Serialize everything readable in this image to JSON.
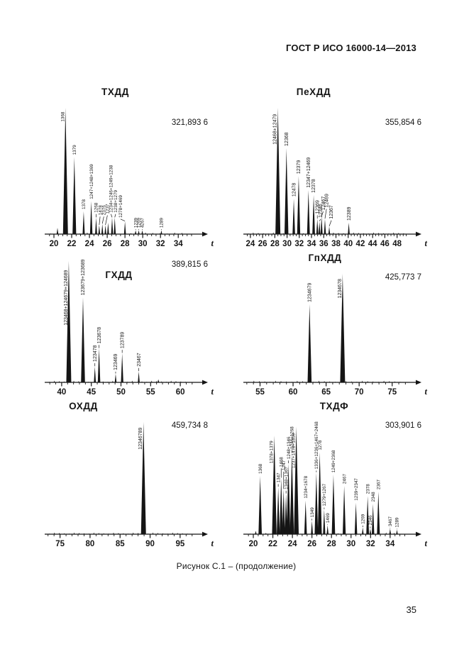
{
  "page": {
    "header": "ГОСТ Р ИСО 16000-14—2013",
    "caption": "Рисунок С.1 – (продолжение)",
    "page_number": "35"
  },
  "colors": {
    "ink": "#151515",
    "paper": "#ffffff"
  },
  "chart_data": [
    {
      "type": "line",
      "subtype": "chromatogram-peaks",
      "title": "ТХДД",
      "value_label": "321,893 6",
      "xlabel": "t",
      "x_ticks": [
        20,
        22,
        24,
        26,
        28,
        30,
        32,
        34
      ],
      "x_range": [
        19.2,
        35.9
      ],
      "minor_step": 0.5,
      "ylim": [
        0,
        1
      ],
      "grid": false,
      "peaks": [
        {
          "t": 20.4,
          "h": 0.05,
          "label": ""
        },
        {
          "t": 21.3,
          "h": 1.0,
          "label": "1368"
        },
        {
          "t": 22.3,
          "h": 0.61,
          "label": "1379"
        },
        {
          "t": 23.35,
          "h": 0.18,
          "label": "1378"
        },
        {
          "t": 24.2,
          "h": 0.26,
          "label": "1247+1248+1369"
        },
        {
          "t": 24.75,
          "h": 0.13,
          "label": "1268",
          "ly": 0.17
        },
        {
          "t": 25.1,
          "h": 0.07,
          "label": "1478",
          "lx": 25.2,
          "ly": 0.15
        },
        {
          "t": 25.45,
          "h": 0.08,
          "label": "2376",
          "lx": 25.62,
          "ly": 0.15
        },
        {
          "t": 25.8,
          "h": 0.07,
          "label": "1237",
          "lx": 26.02,
          "ly": 0.16
        },
        {
          "t": 26.1,
          "h": 0.09,
          "label": ""
        },
        {
          "t": 26.55,
          "h": 0.13,
          "label": "1234+1246+1249+1238",
          "lx": 26.42,
          "ly": 0.17
        },
        {
          "t": 26.85,
          "h": 0.13,
          "label": "1238+1279",
          "lx": 26.95,
          "ly": 0.17
        },
        {
          "t": 28.0,
          "h": 0.1,
          "label": "1278+1469",
          "lx": 27.5,
          "ly": 0.13
        },
        {
          "t": 29.2,
          "h": 0.03,
          "label": "1239",
          "ly": 0.05
        },
        {
          "t": 29.55,
          "h": 0.03,
          "label": "1269",
          "ly": 0.05
        },
        {
          "t": 29.95,
          "h": 0.03,
          "label": "4267",
          "ly": 0.05
        },
        {
          "t": 32.1,
          "h": 0.03,
          "label": "1289",
          "ly": 0.05
        }
      ]
    },
    {
      "type": "line",
      "subtype": "chromatogram-peaks",
      "title": "ПеХДД",
      "value_label": "355,854 6",
      "xlabel": "t",
      "x_ticks": [
        24,
        26,
        28,
        30,
        32,
        34,
        36,
        38,
        40,
        42,
        44,
        46,
        48
      ],
      "x_range": [
        23.2,
        49.9
      ],
      "minor_step": 0.5,
      "ylim": [
        0,
        1
      ],
      "grid": false,
      "peaks": [
        {
          "t": 28.5,
          "h": 1.0,
          "label": "12468+12479"
        },
        {
          "t": 29.9,
          "h": 0.68,
          "label": "12368"
        },
        {
          "t": 31.1,
          "h": 0.28,
          "label": "12478"
        },
        {
          "t": 31.9,
          "h": 0.46,
          "label": "12379"
        },
        {
          "t": 33.5,
          "h": 0.35,
          "label": "12347+12469"
        },
        {
          "t": 34.35,
          "h": 0.31,
          "label": "12378"
        },
        {
          "t": 34.95,
          "h": 0.12,
          "label": "12369",
          "ly": 0.16
        },
        {
          "t": 35.3,
          "h": 0.1,
          "label": "12346",
          "lx": 35.5,
          "ly": 0.13
        },
        {
          "t": 35.65,
          "h": 0.14,
          "label": "12467",
          "lx": 35.92,
          "ly": 0.19
        },
        {
          "t": 36.2,
          "h": 0.12,
          "label": "12469",
          "lx": 36.45,
          "ly": 0.21
        },
        {
          "t": 36.9,
          "h": 0.06,
          "label": "12367",
          "lx": 37.25,
          "ly": 0.12
        },
        {
          "t": 40.1,
          "h": 0.09,
          "label": "12389"
        }
      ]
    },
    {
      "type": "line",
      "subtype": "chromatogram-peaks",
      "title": "ГХДД",
      "value_label": "389,815 6",
      "xlabel": "t",
      "x_ticks": [
        40,
        45,
        50,
        55,
        60
      ],
      "x_range": [
        37.5,
        62.5
      ],
      "minor_step": 1,
      "ylim": [
        0,
        1
      ],
      "grid": false,
      "title_inside": true,
      "peaks": [
        {
          "t": 41.2,
          "h": 1.0,
          "label": "123468+124679+124689"
        },
        {
          "t": 43.6,
          "h": 0.7,
          "label": "123679+123689"
        },
        {
          "t": 45.6,
          "h": 0.13,
          "label": "123478",
          "ly": 0.17
        },
        {
          "t": 46.3,
          "h": 0.28,
          "label": "123678",
          "ly": 0.32
        },
        {
          "t": 49.1,
          "h": 0.07,
          "label": "123469",
          "ly": 0.1
        },
        {
          "t": 50.2,
          "h": 0.24,
          "label": "123789",
          "ly": 0.28
        },
        {
          "t": 53.0,
          "h": 0.09,
          "label": "23467",
          "ly": 0.13
        },
        {
          "t": 56.3,
          "h": 0.025,
          "label": ""
        }
      ]
    },
    {
      "type": "line",
      "subtype": "chromatogram-peaks",
      "title": "ГпХДД",
      "value_label": "425,773 7",
      "xlabel": "t",
      "x_ticks": [
        55,
        60,
        65,
        70,
        75
      ],
      "x_range": [
        52.8,
        77.5
      ],
      "minor_step": 1,
      "ylim": [
        0,
        1
      ],
      "grid": false,
      "peaks": [
        {
          "t": 62.5,
          "h": 0.72,
          "label": "1234679"
        },
        {
          "t": 67.5,
          "h": 1.0,
          "label": "1234678"
        }
      ]
    },
    {
      "type": "line",
      "subtype": "chromatogram-peaks",
      "title": "ОХДД",
      "value_label": "459,734 8",
      "xlabel": "t",
      "x_ticks": [
        75,
        80,
        85,
        90,
        95
      ],
      "x_range": [
        72.8,
        97.5
      ],
      "minor_step": 1,
      "ylim": [
        0,
        1
      ],
      "grid": false,
      "peaks": [
        {
          "t": 88.9,
          "h": 1.0,
          "label": "12346789"
        }
      ]
    },
    {
      "type": "line",
      "subtype": "chromatogram-peaks",
      "title": "ТХДФ",
      "value_label": "303,901 6",
      "xlabel": "t",
      "x_ticks": [
        20,
        22,
        24,
        26,
        28,
        30,
        32,
        34
      ],
      "x_range": [
        19.2,
        35.9
      ],
      "minor_step": 0.5,
      "ylim": [
        0,
        1
      ],
      "grid": false,
      "peaks": [
        {
          "t": 20.25,
          "h": 0.03,
          "label": ""
        },
        {
          "t": 20.7,
          "h": 0.52,
          "label": "1368"
        },
        {
          "t": 22.15,
          "h": 0.88,
          "label": "1378+1379"
        },
        {
          "t": 22.55,
          "h": 0.42,
          "label": "1347",
          "ly": 0.46
        },
        {
          "t": 22.85,
          "h": 0.5,
          "label": "1468",
          "ly": 0.6
        },
        {
          "t": 23.1,
          "h": 0.4,
          "label": "1247",
          "ly": 0.57
        },
        {
          "t": 23.35,
          "h": 0.36,
          "label": "1348+1367",
          "ly": 0.4
        },
        {
          "t": 23.6,
          "h": 0.63,
          "label": "1248+1346",
          "ly": 0.67
        },
        {
          "t": 23.95,
          "h": 0.72,
          "label": "1246+1268",
          "ly": 0.76
        },
        {
          "t": 24.4,
          "h": 0.96,
          "label": "1237+1478+1369"
        },
        {
          "t": 25.35,
          "h": 0.3,
          "label": "1234+1678"
        },
        {
          "t": 26.0,
          "h": 0.12,
          "label": "1349",
          "ly": 0.15
        },
        {
          "t": 26.45,
          "h": 0.55,
          "label": "1336+1236+1467+2468",
          "ly": 0.58
        },
        {
          "t": 26.8,
          "h": 0.73,
          "label": "1278"
        },
        {
          "t": 27.25,
          "h": 0.22,
          "label": "1279+1267",
          "ly": 0.25
        },
        {
          "t": 27.6,
          "h": 0.08,
          "label": "1469",
          "ly": 0.1
        },
        {
          "t": 28.2,
          "h": 0.53,
          "label": "1249+2368"
        },
        {
          "t": 29.3,
          "h": 0.43,
          "label": "2467"
        },
        {
          "t": 30.5,
          "h": 0.28,
          "label": "1239+2347"
        },
        {
          "t": 31.2,
          "h": 0.06,
          "label": "1269",
          "ly": 0.09
        },
        {
          "t": 31.7,
          "h": 0.34,
          "label": "2378"
        },
        {
          "t": 31.97,
          "h": 0.05,
          "label": "2346",
          "ly": 0.08
        },
        {
          "t": 32.25,
          "h": 0.27,
          "label": "2348"
        },
        {
          "t": 32.8,
          "h": 0.38,
          "label": "2367"
        },
        {
          "t": 34.0,
          "h": 0.05,
          "label": "3467",
          "ly": 0.07
        },
        {
          "t": 34.7,
          "h": 0.04,
          "label": "1289",
          "ly": 0.06
        }
      ]
    }
  ]
}
